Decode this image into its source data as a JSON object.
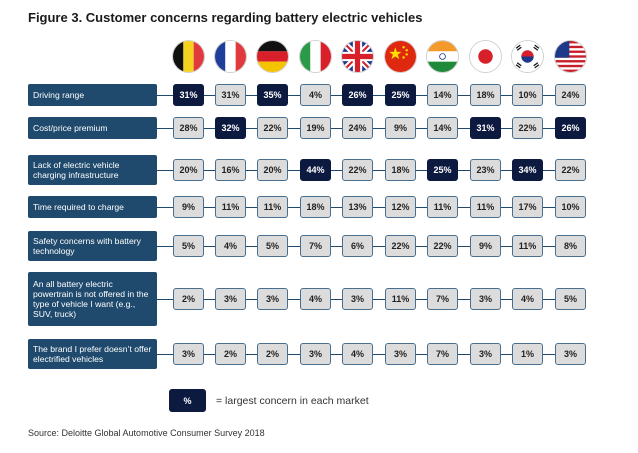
{
  "title": "Figure 3. Customer concerns regarding battery electric vehicles",
  "legend": {
    "swatch": "%",
    "text": "= largest concern in each market"
  },
  "source": "Source: Deloitte Global Automotive Consumer Survey 2018",
  "colors": {
    "label_bg": "#1f4a6d",
    "highlight": "#0d1a40",
    "cell_bg": "#dcdcdc"
  },
  "chart_data": {
    "type": "table",
    "columns": [
      {
        "flag": "belgium-flag-icon"
      },
      {
        "flag": "france-flag-icon"
      },
      {
        "flag": "germany-flag-icon"
      },
      {
        "flag": "italy-flag-icon"
      },
      {
        "flag": "uk-flag-icon"
      },
      {
        "flag": "china-flag-icon"
      },
      {
        "flag": "india-flag-icon"
      },
      {
        "flag": "japan-flag-icon"
      },
      {
        "flag": "south-korea-flag-icon"
      },
      {
        "flag": "usa-flag-icon"
      }
    ],
    "rows": [
      {
        "label": "Driving range",
        "values": [
          31,
          31,
          35,
          4,
          26,
          25,
          14,
          18,
          10,
          24
        ],
        "max": [
          true,
          false,
          true,
          false,
          true,
          true,
          false,
          false,
          false,
          false
        ]
      },
      {
        "label": "Cost/price premium",
        "values": [
          28,
          32,
          22,
          19,
          24,
          9,
          14,
          31,
          22,
          26
        ],
        "max": [
          false,
          true,
          false,
          false,
          false,
          false,
          false,
          true,
          false,
          true
        ]
      },
      {
        "label": "Lack of electric vehicle charging infrastructure",
        "values": [
          20,
          16,
          20,
          44,
          22,
          18,
          25,
          23,
          34,
          22
        ],
        "max": [
          false,
          false,
          false,
          true,
          false,
          false,
          true,
          false,
          true,
          false
        ]
      },
      {
        "label": "Time required to charge",
        "values": [
          9,
          11,
          11,
          18,
          13,
          12,
          11,
          11,
          17,
          10
        ],
        "max": [
          false,
          false,
          false,
          false,
          false,
          false,
          false,
          false,
          false,
          false
        ]
      },
      {
        "label": "Safety concerns with battery technology",
        "values": [
          5,
          4,
          5,
          7,
          6,
          22,
          22,
          9,
          11,
          8
        ],
        "max": [
          false,
          false,
          false,
          false,
          false,
          false,
          false,
          false,
          false,
          false
        ]
      },
      {
        "label": "An all battery electric powertrain is not offered in the type of vehicle I want (e.g., SUV, truck)",
        "values": [
          2,
          3,
          3,
          4,
          3,
          11,
          7,
          3,
          4,
          5
        ],
        "max": [
          false,
          false,
          false,
          false,
          false,
          false,
          false,
          false,
          false,
          false
        ]
      },
      {
        "label": "The brand I prefer doesn’t offer electrified vehicles",
        "values": [
          3,
          2,
          2,
          3,
          4,
          3,
          7,
          3,
          1,
          3
        ],
        "max": [
          false,
          false,
          false,
          false,
          false,
          false,
          false,
          false,
          false,
          false
        ]
      }
    ],
    "unit": "%"
  }
}
